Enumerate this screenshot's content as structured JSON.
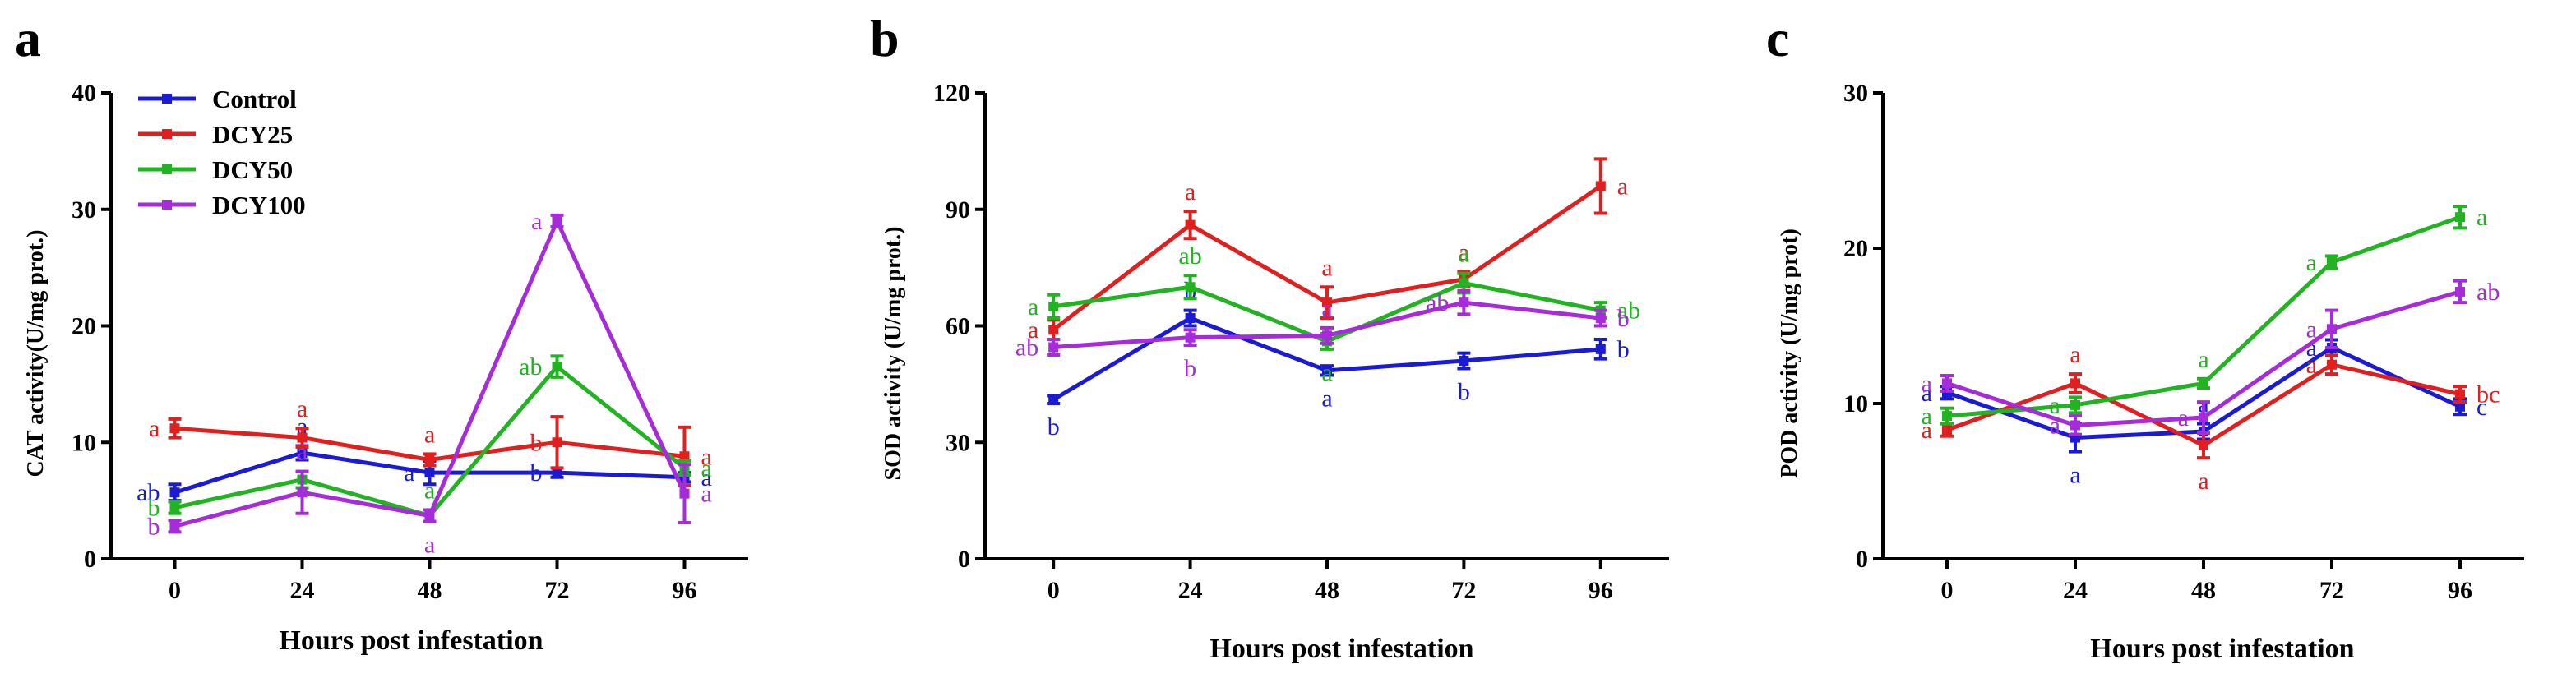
{
  "colors": {
    "Control": "#1b1bd6",
    "DCY25": "#e01f1f",
    "DCY50": "#22b322",
    "DCY100": "#a62bd9"
  },
  "legend": [
    "Control",
    "DCY25",
    "DCY50",
    "DCY100"
  ],
  "chart_data": [
    {
      "type": "line",
      "panel": "a",
      "title": "",
      "xlabel": "Hours post infestation",
      "ylabel": "CAT activity(U/mg prot.)",
      "x": [
        0,
        24,
        48,
        72,
        96
      ],
      "x_ticks": [
        "0",
        "24",
        "48",
        "72",
        "96"
      ],
      "ylim": [
        0,
        40
      ],
      "y_ticks": [
        "0",
        "10",
        "20",
        "30",
        "40"
      ],
      "y_tick_values": [
        0,
        10,
        20,
        30,
        40
      ],
      "series": [
        {
          "name": "Control",
          "values": [
            5.7,
            9.1,
            7.4,
            7.4,
            7.0
          ],
          "errors": [
            0.7,
            0.6,
            1.0,
            0.4,
            0.4
          ],
          "letters": [
            "ab",
            "a",
            "a",
            "b",
            "a"
          ],
          "letter_pos": [
            "left",
            "above",
            "left",
            "left",
            "right"
          ]
        },
        {
          "name": "DCY25",
          "values": [
            11.2,
            10.4,
            8.5,
            10.0,
            8.8
          ],
          "errors": [
            0.8,
            0.8,
            0.5,
            2.2,
            2.5
          ],
          "letters": [
            "a",
            "a",
            "a",
            "b",
            "a"
          ],
          "letter_pos": [
            "left",
            "above",
            "above",
            "left",
            "right"
          ]
        },
        {
          "name": "DCY50",
          "values": [
            4.4,
            6.8,
            3.7,
            16.5,
            7.8
          ],
          "errors": [
            0.5,
            0.7,
            0.5,
            0.9,
            0.6
          ],
          "letters": [
            "b",
            "a",
            "a",
            "ab",
            "a"
          ],
          "letter_pos": [
            "left",
            "above",
            "above",
            "left",
            "right"
          ]
        },
        {
          "name": "DCY100",
          "values": [
            2.8,
            5.7,
            3.7,
            29.0,
            5.6
          ],
          "errors": [
            0.5,
            1.8,
            0.5,
            0.5,
            2.5
          ],
          "letters": [
            "b",
            "a",
            "a",
            "a",
            "a"
          ],
          "letter_pos": [
            "left",
            "above",
            "below",
            "left",
            "right"
          ]
        }
      ]
    },
    {
      "type": "line",
      "panel": "b",
      "title": "",
      "xlabel": "Hours post infestation",
      "ylabel": "SOD activity (U/mg prot.)",
      "x": [
        0,
        24,
        48,
        72,
        96
      ],
      "x_ticks": [
        "0",
        "24",
        "48",
        "72",
        "96"
      ],
      "ylim": [
        0,
        120
      ],
      "y_ticks": [
        "0",
        "30",
        "60",
        "90",
        "120"
      ],
      "y_tick_values": [
        0,
        30,
        60,
        90,
        120
      ],
      "series": [
        {
          "name": "Control",
          "values": [
            41,
            62,
            48.5,
            51,
            54
          ],
          "errors": [
            1,
            2,
            1.2,
            2,
            2.5
          ],
          "letters": [
            "b",
            "b",
            "a",
            "b",
            "b"
          ],
          "letter_pos": [
            "below",
            "above",
            "below",
            "below",
            "right"
          ]
        },
        {
          "name": "DCY25",
          "values": [
            59,
            86,
            66,
            72,
            96
          ],
          "errors": [
            2.5,
            3.5,
            4,
            2,
            7
          ],
          "letters": [
            "a",
            "a",
            "a",
            "a",
            "a"
          ],
          "letter_pos": [
            "left",
            "above",
            "above",
            "above",
            "right"
          ]
        },
        {
          "name": "DCY50",
          "values": [
            65,
            70,
            56,
            71,
            64
          ],
          "errors": [
            3,
            3,
            2,
            2.5,
            2
          ],
          "letters": [
            "a",
            "ab",
            "a",
            "a",
            "ab"
          ],
          "letter_pos": [
            "left",
            "above",
            "below",
            "above",
            "right"
          ]
        },
        {
          "name": "DCY100",
          "values": [
            54.5,
            57,
            57.5,
            66,
            62
          ],
          "errors": [
            2,
            2,
            2,
            3,
            2
          ],
          "letters": [
            "ab",
            "b",
            "a",
            "ab",
            "b"
          ],
          "letter_pos": [
            "left",
            "below",
            "above",
            "left",
            "right"
          ]
        }
      ]
    },
    {
      "type": "line",
      "panel": "c",
      "title": "",
      "xlabel": "Hours post infestation",
      "ylabel": "POD activity (U/mg prot)",
      "x": [
        0,
        24,
        48,
        72,
        96
      ],
      "x_ticks": [
        "0",
        "24",
        "48",
        "72",
        "96"
      ],
      "ylim": [
        0,
        30
      ],
      "y_ticks": [
        "0",
        "10",
        "20",
        "30"
      ],
      "y_tick_values": [
        0,
        10,
        20,
        30
      ],
      "series": [
        {
          "name": "Control",
          "values": [
            10.7,
            7.8,
            8.2,
            13.6,
            9.8
          ],
          "errors": [
            0.4,
            0.9,
            0.5,
            0.5,
            0.5
          ],
          "letters": [
            "a",
            "a",
            "a",
            "a",
            "c"
          ],
          "letter_pos": [
            "left",
            "below",
            "above",
            "left",
            "right"
          ]
        },
        {
          "name": "DCY25",
          "values": [
            8.3,
            11.3,
            7.3,
            12.5,
            10.6
          ],
          "errors": [
            0.4,
            0.6,
            0.8,
            0.6,
            0.5
          ],
          "letters": [
            "a",
            "a",
            "a",
            "a",
            "bc"
          ],
          "letter_pos": [
            "left",
            "above",
            "below",
            "left",
            "right"
          ]
        },
        {
          "name": "DCY50",
          "values": [
            9.2,
            9.9,
            11.3,
            19.1,
            22.0
          ],
          "errors": [
            0.5,
            0.5,
            0.3,
            0.4,
            0.7
          ],
          "letters": [
            "a",
            "a",
            "a",
            "a",
            "a"
          ],
          "letter_pos": [
            "left",
            "left",
            "above",
            "left",
            "right"
          ]
        },
        {
          "name": "DCY100",
          "values": [
            11.3,
            8.6,
            9.1,
            14.8,
            17.2
          ],
          "errors": [
            0.5,
            0.6,
            1.0,
            1.2,
            0.7
          ],
          "letters": [
            "a",
            "a",
            "a",
            "a",
            "ab"
          ],
          "letter_pos": [
            "left",
            "left",
            "left",
            "left",
            "right"
          ]
        }
      ]
    }
  ]
}
